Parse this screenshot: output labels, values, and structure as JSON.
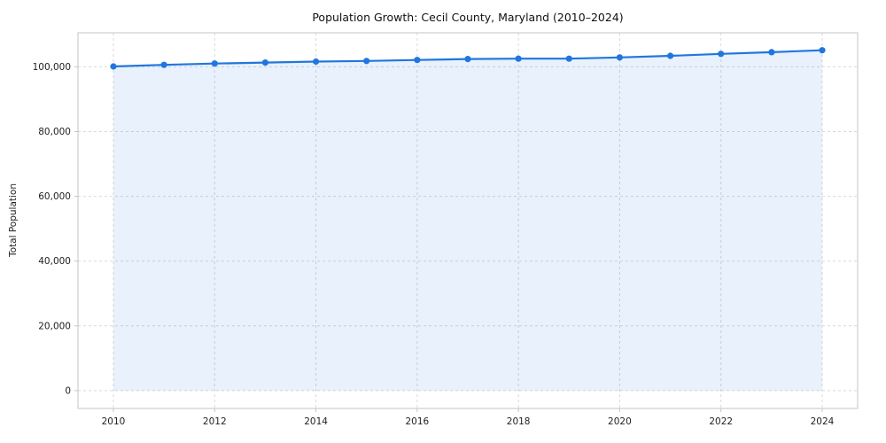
{
  "chart_data": {
    "type": "area",
    "title": "Population Growth: Cecil County, Maryland (2010–2024)",
    "xlabel": "",
    "ylabel": "Total Population",
    "x": [
      2010,
      2011,
      2012,
      2013,
      2014,
      2015,
      2016,
      2017,
      2018,
      2019,
      2020,
      2021,
      2022,
      2023,
      2024
    ],
    "values": [
      100100,
      100600,
      101000,
      101300,
      101600,
      101800,
      102100,
      102400,
      102500,
      102500,
      102900,
      103400,
      104000,
      104500,
      105100
    ],
    "xticks": [
      2010,
      2012,
      2014,
      2016,
      2018,
      2020,
      2022,
      2024
    ],
    "yticks": [
      0,
      20000,
      40000,
      60000,
      80000,
      100000
    ],
    "xlim": [
      2009.3,
      2024.7
    ],
    "ylim": [
      -5500,
      110500
    ],
    "grid": true,
    "legend": "none",
    "colors": {
      "line": "#2176de",
      "marker": "#2176de",
      "fill_opacity": 0.1,
      "grid": "#d9d9d9",
      "axis": "#c4c4c4",
      "tick_text": "#222222"
    }
  }
}
